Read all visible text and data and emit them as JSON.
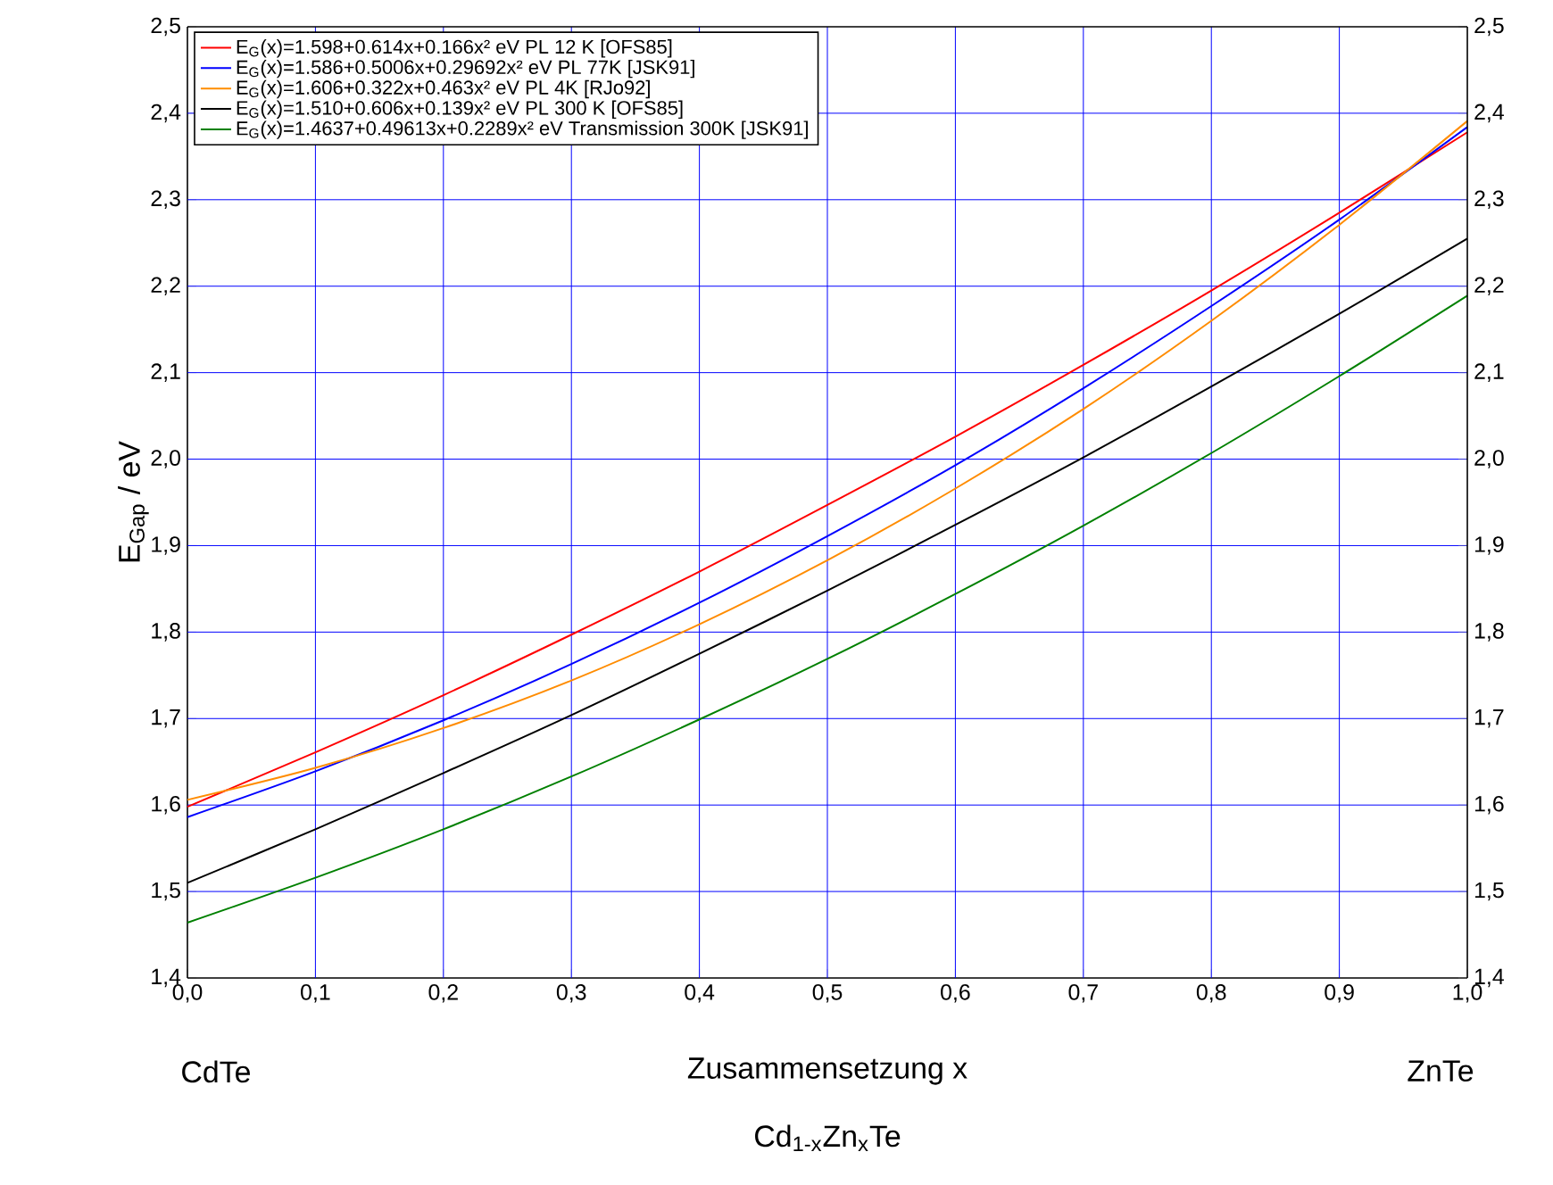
{
  "chart_data": {
    "type": "line",
    "xlabel": "Zusammensetzung x",
    "ylabel": "E$_{Gap}$ / eV",
    "annotations": [
      "CdTe",
      "ZnTe",
      "Cd$_{1-x}$Zn$_{x}$Te"
    ],
    "x": [
      0,
      0.1,
      0.2,
      0.3,
      0.4,
      0.5,
      0.6,
      0.7,
      0.8,
      0.9,
      1.0
    ],
    "series": [
      {
        "name": "E$_{G}$(x)=1.598+0.614x+0.166x² eV    PL 12 K [OFS85]",
        "color": "#ff0000",
        "values": [
          1.598,
          1.661,
          1.727,
          1.797,
          1.87,
          1.947,
          2.026,
          2.109,
          2.195,
          2.285,
          2.378
        ]
      },
      {
        "name": "E$_{G}$(x)=1.586+0.5006x+0.29692x² eV    PL 77K [JSK91]",
        "color": "#0000ff",
        "values": [
          1.586,
          1.639,
          1.698,
          1.763,
          1.834,
          1.911,
          1.993,
          2.082,
          2.177,
          2.277,
          2.384
        ]
      },
      {
        "name": "E$_{G}$(x)=1.606+0.322x+0.463x² eV    PL 4K [RJo92]",
        "color": "#ff8c00",
        "values": [
          1.606,
          1.643,
          1.689,
          1.744,
          1.809,
          1.883,
          1.966,
          2.058,
          2.16,
          2.271,
          2.391
        ]
      },
      {
        "name": "E$_{G}$(x)=1.510+0.606x+0.139x² eV    PL 300 K [OFS85]",
        "color": "#000000",
        "values": [
          1.51,
          1.572,
          1.637,
          1.704,
          1.775,
          1.848,
          1.924,
          2.002,
          2.084,
          2.168,
          2.255
        ]
      },
      {
        "name": "E$_{G}$(x)=1.4637+0.49613x+0.2289x² eV    Transmission 300K [JSK91]",
        "color": "#008000",
        "values": [
          1.464,
          1.516,
          1.572,
          1.633,
          1.699,
          1.769,
          1.844,
          1.923,
          2.007,
          2.096,
          2.189
        ]
      }
    ],
    "xlim": [
      0,
      1.0
    ],
    "xticks": [
      {
        "value": 0,
        "label": "0,0"
      },
      {
        "value": 0.1,
        "label": "0,1"
      },
      {
        "value": 0.2,
        "label": "0,2"
      },
      {
        "value": 0.3,
        "label": "0,3"
      },
      {
        "value": 0.4,
        "label": "0,4"
      },
      {
        "value": 0.5,
        "label": "0,5"
      },
      {
        "value": 0.6,
        "label": "0,6"
      },
      {
        "value": 0.7,
        "label": "0,7"
      },
      {
        "value": 0.8,
        "label": "0,8"
      },
      {
        "value": 0.9,
        "label": "0,9"
      },
      {
        "value": 1.0,
        "label": "1,0"
      }
    ],
    "ylim": [
      1.4,
      2.5
    ],
    "yticks": [
      {
        "value": 1.4,
        "label": "1,4"
      },
      {
        "value": 1.5,
        "label": "1,5"
      },
      {
        "value": 1.6,
        "label": "1,6"
      },
      {
        "value": 1.7,
        "label": "1,7"
      },
      {
        "value": 1.8,
        "label": "1,8"
      },
      {
        "value": 1.9,
        "label": "1,9"
      },
      {
        "value": 2.0,
        "label": "2,0"
      },
      {
        "value": 2.1,
        "label": "2,1"
      },
      {
        "value": 2.2,
        "label": "2,2"
      },
      {
        "value": 2.3,
        "label": "2,3"
      },
      {
        "value": 2.4,
        "label": "2,4"
      },
      {
        "value": 2.5,
        "label": "2,5"
      }
    ],
    "y2lim": [
      1.4,
      2.5
    ],
    "y2ticks": [
      {
        "value": 1.4,
        "label": "1,4"
      },
      {
        "value": 1.5,
        "label": "1,5"
      },
      {
        "value": 1.6,
        "label": "1,6"
      },
      {
        "value": 1.7,
        "label": "1,7"
      },
      {
        "value": 1.8,
        "label": "1,8"
      },
      {
        "value": 1.9,
        "label": "1,9"
      },
      {
        "value": 2.0,
        "label": "2,0"
      },
      {
        "value": 2.1,
        "label": "2,1"
      },
      {
        "value": 2.2,
        "label": "2,2"
      },
      {
        "value": 2.3,
        "label": "2,3"
      },
      {
        "value": 2.4,
        "label": "2,4"
      },
      {
        "value": 2.5,
        "label": "2,5"
      }
    ],
    "grid": true,
    "legend": "top left"
  }
}
